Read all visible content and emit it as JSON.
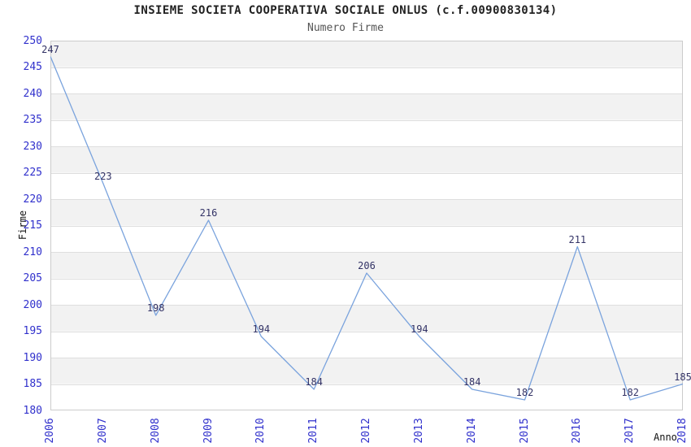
{
  "chart_data": {
    "type": "line",
    "title": "INSIEME SOCIETA COOPERATIVA SOCIALE ONLUS (c.f.00900830134)",
    "subtitle": "Numero Firme",
    "xlabel": "Anno",
    "ylabel": "Firme",
    "categories": [
      "2006",
      "2007",
      "2008",
      "2009",
      "2010",
      "2011",
      "2012",
      "2013",
      "2014",
      "2015",
      "2016",
      "2017",
      "2018"
    ],
    "series": [
      {
        "name": "Numero Firme",
        "values": [
          247,
          223,
          198,
          216,
          194,
          184,
          206,
          194,
          184,
          182,
          211,
          182,
          185
        ]
      }
    ],
    "ylim": [
      180,
      250
    ],
    "ytick_step": 5,
    "grid": true,
    "legend_position": "none",
    "show_point_labels": true,
    "alternating_bands": true,
    "colors": {
      "line": "#7aa3dd",
      "tick_label": "#3030cc",
      "data_label": "#333366",
      "band": "#f2f2f2",
      "gridline": "#dedede",
      "plot_border": "#cccccc",
      "title": "#222222",
      "subtitle": "#555555",
      "axis_title": "#111111"
    }
  }
}
